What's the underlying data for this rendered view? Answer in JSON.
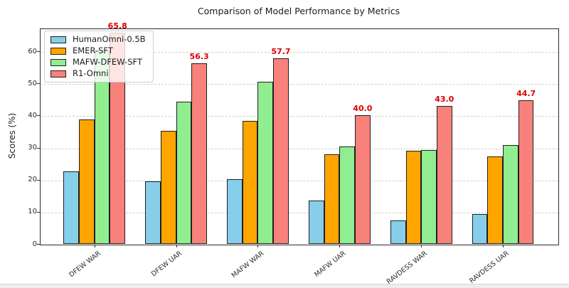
{
  "chart_data": {
    "type": "bar",
    "title": "Comparison of Model Performance by Metrics",
    "xlabel": "",
    "ylabel": "Scores (%)",
    "categories": [
      "DFEW WAR",
      "DFEW UAR",
      "MAFW WAR",
      "MAFW UAR",
      "RAVDESS WAR",
      "RAVDESS UAR"
    ],
    "series": [
      {
        "name": "HumanOmni-0.5B",
        "color": "#87CEEB",
        "values": [
          22.6,
          19.4,
          20.2,
          13.5,
          7.3,
          9.4
        ]
      },
      {
        "name": "EMER-SFT",
        "color": "#FFA500",
        "values": [
          38.7,
          35.3,
          38.4,
          28.0,
          29.0,
          27.2
        ]
      },
      {
        "name": "MAFW-DFEW-SFT",
        "color": "#90EE90",
        "values": [
          60.2,
          44.4,
          50.4,
          30.4,
          29.3,
          30.8
        ]
      },
      {
        "name": "R1-Omni",
        "color": "#F8817B",
        "values": [
          65.8,
          56.3,
          57.7,
          40.0,
          43.0,
          44.7
        ]
      }
    ],
    "value_labels": {
      "series": "R1-Omni",
      "labels": [
        "65.8",
        "56.3",
        "57.7",
        "40.0",
        "43.0",
        "44.7"
      ],
      "color": "#DD0000"
    },
    "yticks": [
      0,
      10,
      20,
      30,
      40,
      50,
      60
    ],
    "ylim": [
      0,
      67.1
    ],
    "grid": {
      "axis": "y",
      "style": "dashed",
      "color": "#CFCFCF"
    },
    "legend": {
      "position": "upper-left",
      "entries": [
        "HumanOmni-0.5B",
        "EMER-SFT",
        "MAFW-DFEW-SFT",
        "R1-Omni"
      ]
    },
    "bar_edge_color": "#1f1f1f"
  }
}
